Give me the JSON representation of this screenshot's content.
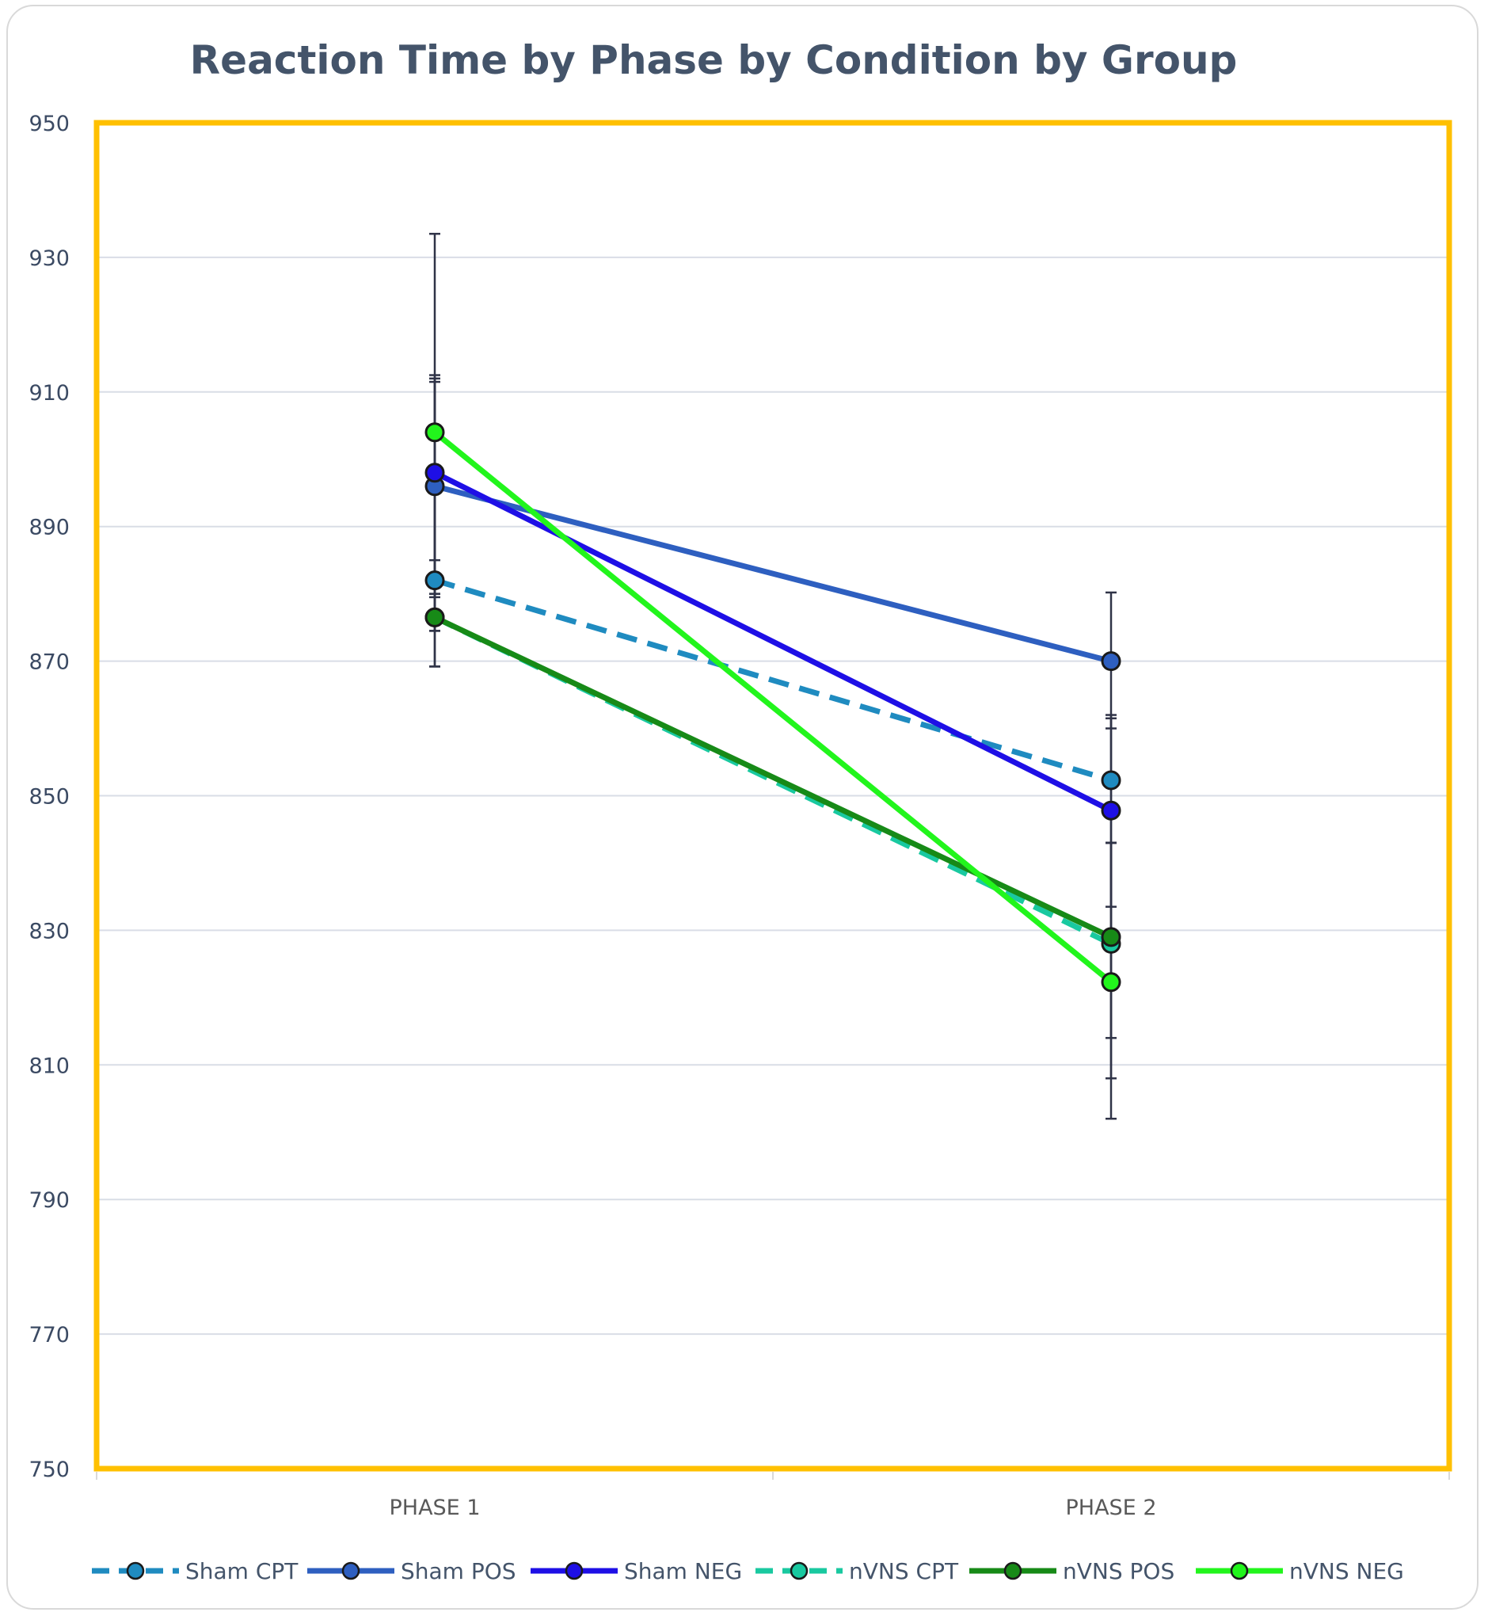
{
  "chart_data": {
    "type": "line",
    "title": "Reaction Time by Phase by Condition by Group",
    "xlabel": "",
    "ylabel": "",
    "categories": [
      "PHASE 1",
      "PHASE 2"
    ],
    "ylim": [
      750,
      950
    ],
    "yticks": [
      750,
      770,
      790,
      810,
      830,
      850,
      870,
      890,
      910,
      930,
      950
    ],
    "grid": true,
    "legend": "bottom",
    "plot_border_color": "#FFC000",
    "series": [
      {
        "name": "Sham CPT",
        "values": [
          882,
          852.3
        ],
        "color": "#1F8BC0",
        "dash": true,
        "error_top": [
          912,
          862
        ],
        "error_bottom": [
          869.2,
          843
        ]
      },
      {
        "name": "Sham POS",
        "values": [
          896,
          870
        ],
        "color": "#2E5FC0",
        "dash": false,
        "error_top": [
          911.5,
          880.2
        ],
        "error_bottom": [
          869.2,
          860
        ]
      },
      {
        "name": "Sham NEG",
        "values": [
          898,
          847.8
        ],
        "color": "#1E0FE6",
        "dash": false,
        "error_top": [
          933.5,
          861.5
        ],
        "error_bottom": [
          879.5,
          833.5
        ]
      },
      {
        "name": "nVNS CPT",
        "values": [
          876.5,
          828
        ],
        "color": "#19C9A0",
        "dash": true,
        "error_top": [
          885,
          843
        ],
        "error_bottom": [
          874.5,
          808
        ]
      },
      {
        "name": "nVNS POS",
        "values": [
          876.5,
          829
        ],
        "color": "#178A17",
        "dash": false,
        "error_top": [
          880,
          843
        ],
        "error_bottom": [
          874.5,
          814
        ]
      },
      {
        "name": "nVNS NEG",
        "values": [
          904,
          822.3
        ],
        "color": "#22F51C",
        "dash": false,
        "error_top": [
          912.5,
          843
        ],
        "error_bottom": [
          880,
          802
        ]
      }
    ]
  }
}
